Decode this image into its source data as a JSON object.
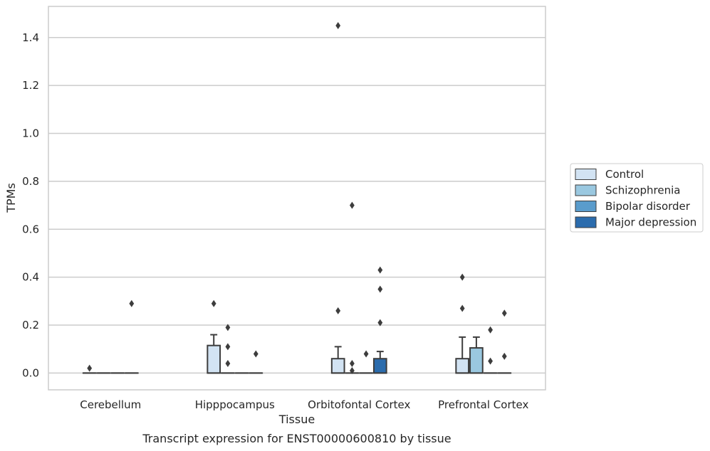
{
  "chart_data": {
    "type": "box",
    "caption": "Transcript expression for ENST00000600810 by tissue",
    "xlabel": "Tissue",
    "ylabel": "TPMs",
    "ylim": [
      -0.07,
      1.53
    ],
    "yticks": [
      "0.0",
      "0.2",
      "0.4",
      "0.6",
      "0.8",
      "1.0",
      "1.2",
      "1.4"
    ],
    "grid": "horizontal",
    "legend_position": "right",
    "categories": [
      "Cerebellum",
      "Hipppocampus",
      "Orbitofontal Cortex",
      "Prefrontal Cortex"
    ],
    "series": [
      {
        "name": "Control",
        "color": "#d2e3f3",
        "boxes": [
          {
            "q1": 0,
            "median": 0,
            "q3": 0,
            "whisker_low": 0,
            "whisker_high": 0,
            "outliers": [
              0.02
            ]
          },
          {
            "q1": 0,
            "median": 0,
            "q3": 0.115,
            "whisker_low": 0,
            "whisker_high": 0.16,
            "outliers": [
              0.29
            ]
          },
          {
            "q1": 0,
            "median": 0,
            "q3": 0.06,
            "whisker_low": 0,
            "whisker_high": 0.11,
            "outliers": [
              0.26,
              1.45
            ]
          },
          {
            "q1": 0,
            "median": 0,
            "q3": 0.06,
            "whisker_low": 0,
            "whisker_high": 0.15,
            "outliers": [
              0.27,
              0.4
            ]
          }
        ]
      },
      {
        "name": "Schizophrenia",
        "color": "#9ac8e0",
        "boxes": [
          {
            "q1": 0,
            "median": 0,
            "q3": 0,
            "whisker_low": 0,
            "whisker_high": 0,
            "outliers": []
          },
          {
            "q1": 0,
            "median": 0,
            "q3": 0,
            "whisker_low": 0,
            "whisker_high": 0,
            "outliers": [
              0.04,
              0.11,
              0.19
            ]
          },
          {
            "q1": 0,
            "median": 0,
            "q3": 0,
            "whisker_low": 0,
            "whisker_high": 0,
            "outliers": [
              0.01,
              0.04,
              0.7
            ]
          },
          {
            "q1": 0,
            "median": 0,
            "q3": 0.105,
            "whisker_low": 0,
            "whisker_high": 0.15,
            "outliers": []
          }
        ]
      },
      {
        "name": "Bipolar disorder",
        "color": "#5a9ccc",
        "boxes": [
          {
            "q1": 0,
            "median": 0,
            "q3": 0,
            "whisker_low": 0,
            "whisker_high": 0,
            "outliers": []
          },
          {
            "q1": 0,
            "median": 0,
            "q3": 0,
            "whisker_low": 0,
            "whisker_high": 0,
            "outliers": []
          },
          {
            "q1": 0,
            "median": 0,
            "q3": 0,
            "whisker_low": 0,
            "whisker_high": 0,
            "outliers": [
              0.08
            ]
          },
          {
            "q1": 0,
            "median": 0,
            "q3": 0,
            "whisker_low": 0,
            "whisker_high": 0,
            "outliers": [
              0.05,
              0.18
            ]
          }
        ]
      },
      {
        "name": "Major depression",
        "color": "#2b6cad",
        "boxes": [
          {
            "q1": 0,
            "median": 0,
            "q3": 0,
            "whisker_low": 0,
            "whisker_high": 0,
            "outliers": [
              0.29
            ]
          },
          {
            "q1": 0,
            "median": 0,
            "q3": 0,
            "whisker_low": 0,
            "whisker_high": 0,
            "outliers": [
              0.08
            ]
          },
          {
            "q1": 0,
            "median": 0,
            "q3": 0.06,
            "whisker_low": 0,
            "whisker_high": 0.09,
            "outliers": [
              0.21,
              0.35,
              0.43
            ]
          },
          {
            "q1": 0,
            "median": 0,
            "q3": 0,
            "whisker_low": 0,
            "whisker_high": 0,
            "outliers": [
              0.07,
              0.25
            ]
          }
        ]
      }
    ]
  }
}
